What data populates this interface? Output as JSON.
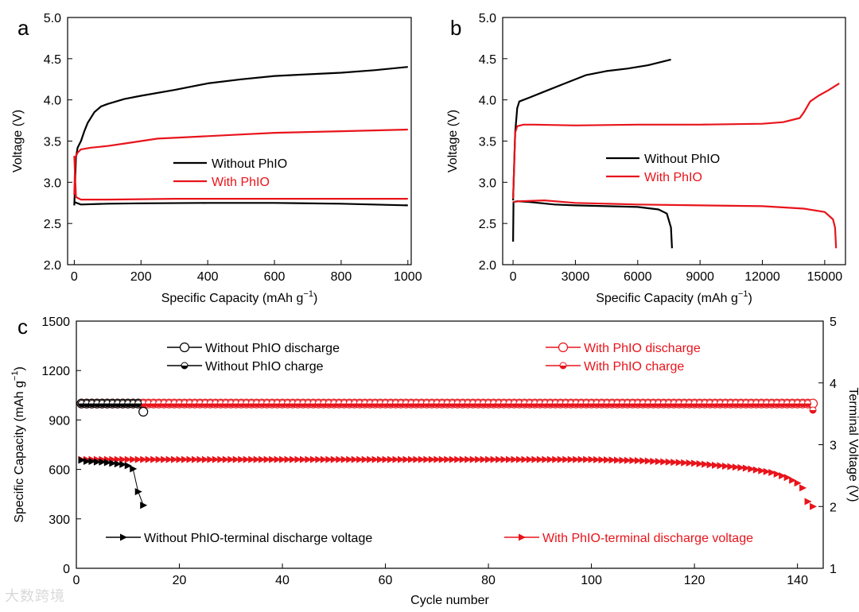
{
  "figure": {
    "watermark": "大数跨境",
    "panel_labels": [
      "a",
      "b",
      "c"
    ]
  },
  "chart_data": [
    {
      "panel": "a",
      "type": "line",
      "xlabel": "Specific Capacity (mAh g",
      "xlabel_sup": "−1",
      "xlabel_end": ")",
      "ylabel": "Voltage (V)",
      "xlim": [
        -20,
        1010
      ],
      "ylim": [
        2.0,
        5.0
      ],
      "xticks": [
        0,
        200,
        400,
        600,
        800,
        1000
      ],
      "yticks": [
        "2.0",
        "2.5",
        "3.0",
        "3.5",
        "4.0",
        "4.5",
        "5.0"
      ],
      "legend": [
        "Without PhIO",
        "With PhIO"
      ],
      "legend_position": "center",
      "series": [
        {
          "name": "Without PhIO",
          "color": "#000000",
          "x": [
            0,
            5,
            10,
            20,
            30,
            40,
            60,
            80,
            100,
            150,
            200,
            300,
            400,
            500,
            600,
            700,
            800,
            900,
            1000
          ],
          "y": [
            2.72,
            3.3,
            3.42,
            3.5,
            3.62,
            3.72,
            3.85,
            3.92,
            3.95,
            4.01,
            4.05,
            4.12,
            4.2,
            4.25,
            4.29,
            4.31,
            4.33,
            4.36,
            4.4
          ]
        },
        {
          "name": "Without PhIO discharge",
          "color": "#000000",
          "x": [
            0,
            20,
            100,
            200,
            400,
            600,
            800,
            1000
          ],
          "y": [
            2.76,
            2.73,
            2.74,
            2.745,
            2.75,
            2.75,
            2.74,
            2.72
          ]
        },
        {
          "name": "With PhIO",
          "color": "#e8141b",
          "x": [
            0,
            3,
            10,
            20,
            50,
            100,
            150,
            200,
            250,
            300,
            400,
            500,
            600,
            800,
            1000
          ],
          "y": [
            2.85,
            3.3,
            3.36,
            3.4,
            3.42,
            3.44,
            3.47,
            3.5,
            3.53,
            3.54,
            3.56,
            3.58,
            3.6,
            3.62,
            3.64
          ]
        },
        {
          "name": "With PhIO discharge",
          "color": "#e8141b",
          "x": [
            0,
            5,
            20,
            100,
            300,
            600,
            800,
            1000
          ],
          "y": [
            3.32,
            2.82,
            2.79,
            2.79,
            2.8,
            2.8,
            2.8,
            2.8
          ]
        }
      ]
    },
    {
      "panel": "b",
      "type": "line",
      "xlabel": "Specific Capacity (mAh g",
      "xlabel_sup": "−1",
      "xlabel_end": ")",
      "ylabel": "Voltage (V)",
      "xlim": [
        -500,
        16000
      ],
      "ylim": [
        2.0,
        5.0
      ],
      "xticks": [
        0,
        3000,
        6000,
        9000,
        12000,
        15000
      ],
      "yticks": [
        "2.0",
        "2.5",
        "3.0",
        "3.5",
        "4.0",
        "4.5",
        "5.0"
      ],
      "legend": [
        "Without PhIO",
        "With PhIO"
      ],
      "legend_position": "center-left",
      "series": [
        {
          "name": "Without PhIO",
          "color": "#000000",
          "x": [
            0,
            100,
            200,
            300,
            500,
            800,
            1500,
            2500,
            3500,
            4500,
            5500,
            6500,
            7600
          ],
          "y": [
            2.78,
            3.6,
            3.9,
            3.98,
            4.0,
            4.03,
            4.1,
            4.2,
            4.3,
            4.35,
            4.38,
            4.42,
            4.49
          ]
        },
        {
          "name": "Without PhIO discharge",
          "color": "#000000",
          "x": [
            0,
            20,
            200,
            800,
            2000,
            3000,
            4500,
            6000,
            7000,
            7400,
            7600,
            7650
          ],
          "y": [
            2.28,
            2.76,
            2.77,
            2.76,
            2.73,
            2.72,
            2.71,
            2.7,
            2.67,
            2.62,
            2.45,
            2.2
          ]
        },
        {
          "name": "With PhIO",
          "color": "#e8141b",
          "x": [
            0,
            100,
            200,
            500,
            1000,
            3000,
            6000,
            9000,
            12000,
            13000,
            13800,
            14000,
            14300,
            14700,
            15200,
            15700
          ],
          "y": [
            2.8,
            3.6,
            3.68,
            3.7,
            3.7,
            3.69,
            3.7,
            3.7,
            3.71,
            3.73,
            3.78,
            3.85,
            3.98,
            4.05,
            4.12,
            4.2
          ]
        },
        {
          "name": "With PhIO discharge",
          "color": "#e8141b",
          "x": [
            0,
            300,
            1500,
            3000,
            6000,
            9000,
            12000,
            14000,
            15000,
            15400,
            15500,
            15550
          ],
          "y": [
            2.76,
            2.77,
            2.78,
            2.75,
            2.73,
            2.72,
            2.71,
            2.68,
            2.64,
            2.55,
            2.45,
            2.2
          ]
        }
      ]
    },
    {
      "panel": "c",
      "type": "scatter",
      "xlabel": "Cycle number",
      "ylabel": "Specific Capacity (mAh g",
      "ylabel_sup": "−1",
      "ylabel_end": ")",
      "y2label": "Terminal Voltage (V)",
      "xlim": [
        0,
        145
      ],
      "ylim": [
        0,
        1500
      ],
      "y2lim": [
        1,
        5
      ],
      "xticks": [
        0,
        20,
        40,
        60,
        80,
        100,
        120,
        140
      ],
      "yticks": [
        0,
        300,
        600,
        900,
        1200,
        1500
      ],
      "y2ticks": [
        1,
        2,
        3,
        4,
        5
      ],
      "legend_position": "top and bottom",
      "series": [
        {
          "name": "Without PhIO discharge",
          "color": "#000000",
          "marker": "open-circle",
          "axis": "left",
          "cycles": [
            1,
            2,
            3,
            4,
            5,
            6,
            7,
            8,
            9,
            10,
            11,
            12,
            13
          ],
          "values": [
            1000,
            1000,
            1000,
            1000,
            1000,
            1000,
            1000,
            1000,
            1000,
            1000,
            1000,
            1000,
            950
          ]
        },
        {
          "name": "Without PhIO charge",
          "color": "#000000",
          "marker": "half-circle",
          "axis": "left",
          "cycles": [
            1,
            2,
            3,
            4,
            5,
            6,
            7,
            8,
            9,
            10,
            11,
            12
          ],
          "values": [
            1000,
            1000,
            1000,
            1000,
            1000,
            1000,
            1000,
            1000,
            1000,
            1000,
            1000,
            1000
          ]
        },
        {
          "name": "With PhIO discharge",
          "color": "#e8141b",
          "marker": "open-circle",
          "axis": "left",
          "cycles_range": [
            1,
            143
          ],
          "value_default": 1000,
          "value_overrides": {}
        },
        {
          "name": "With PhIO charge",
          "color": "#e8141b",
          "marker": "half-circle",
          "axis": "left",
          "cycles_range": [
            1,
            143
          ],
          "value_default": 1000,
          "value_overrides": {
            "143": 960
          }
        },
        {
          "name": "Without PhIO-terminal discharge voltage",
          "color": "#000000",
          "marker": "right-triangle",
          "axis": "right",
          "cycles": [
            1,
            2,
            3,
            4,
            5,
            6,
            7,
            8,
            9,
            10,
            11,
            12,
            13
          ],
          "values": [
            2.75,
            2.73,
            2.73,
            2.72,
            2.72,
            2.71,
            2.7,
            2.69,
            2.68,
            2.66,
            2.61,
            2.24,
            2.02
          ]
        },
        {
          "name": "With PhIO-terminal discharge voltage",
          "color": "#e8141b",
          "marker": "right-triangle",
          "axis": "right",
          "cycles_range": [
            1,
            143
          ],
          "values_keyframes": [
            [
              1,
              2.76
            ],
            [
              100,
              2.76
            ],
            [
              110,
              2.74
            ],
            [
              120,
              2.7
            ],
            [
              130,
              2.62
            ],
            [
              135,
              2.55
            ],
            [
              138,
              2.47
            ],
            [
              140,
              2.38
            ],
            [
              141,
              2.3
            ],
            [
              142,
              2.08
            ],
            [
              143,
              2.0
            ]
          ]
        }
      ]
    }
  ]
}
